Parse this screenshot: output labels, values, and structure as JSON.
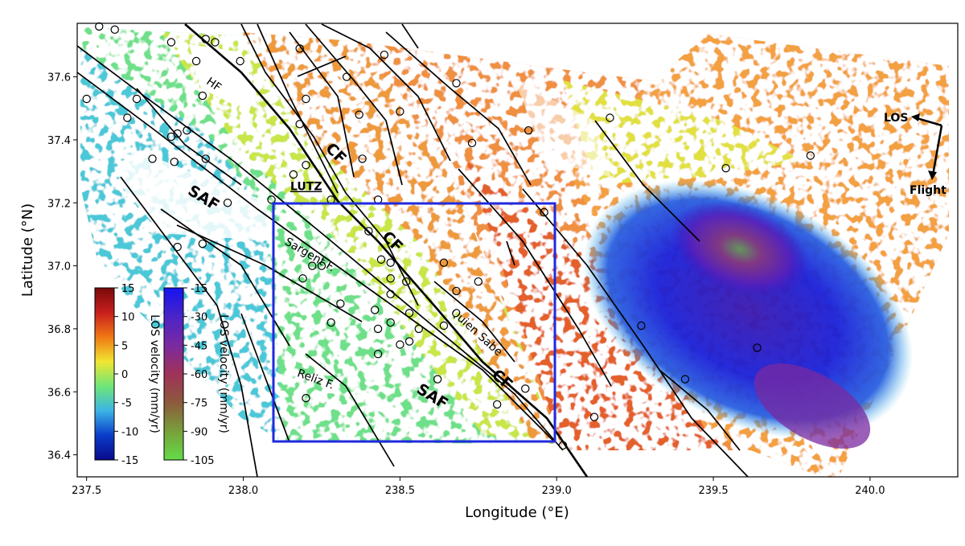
{
  "axes": {
    "xlabel": "Longitude (°E)",
    "ylabel": "Latitude (°N)",
    "xlim": [
      237.47,
      240.28
    ],
    "ylim": [
      36.33,
      37.77
    ],
    "xticks": [
      {
        "value": 237.5,
        "label": "237.5"
      },
      {
        "value": 238.0,
        "label": "238.0"
      },
      {
        "value": 238.5,
        "label": "238.5"
      },
      {
        "value": 239.0,
        "label": "239.0"
      },
      {
        "value": 239.5,
        "label": "239.5"
      },
      {
        "value": 240.0,
        "label": "240.0"
      }
    ],
    "yticks": [
      {
        "value": 36.4,
        "label": "36.4"
      },
      {
        "value": 36.6,
        "label": "36.6"
      },
      {
        "value": 36.8,
        "label": "36.8"
      },
      {
        "value": 37.0,
        "label": "37.0"
      },
      {
        "value": 37.2,
        "label": "37.2"
      },
      {
        "value": 37.4,
        "label": "37.4"
      },
      {
        "value": 37.6,
        "label": "37.6"
      }
    ]
  },
  "fault_labels": [
    {
      "text": "HF",
      "lon": 237.88,
      "lat": 37.58,
      "rotate": 35,
      "size": 14,
      "weight": "normal",
      "underline": false
    },
    {
      "text": "CF",
      "lon": 238.26,
      "lat": 37.37,
      "rotate": 45,
      "size": 19,
      "weight": "bold",
      "underline": false
    },
    {
      "text": "LUTZ",
      "lon": 238.15,
      "lat": 37.24,
      "rotate": 0,
      "size": 14,
      "weight": "bold",
      "underline": true
    },
    {
      "text": "SAF",
      "lon": 237.82,
      "lat": 37.23,
      "rotate": 32,
      "size": 19,
      "weight": "bold",
      "underline": false
    },
    {
      "text": "CF",
      "lon": 238.44,
      "lat": 37.09,
      "rotate": 45,
      "size": 19,
      "weight": "bold",
      "underline": false
    },
    {
      "text": "Sargent F.",
      "lon": 238.13,
      "lat": 37.07,
      "rotate": 30,
      "size": 14,
      "weight": "normal",
      "underline": false
    },
    {
      "text": "Quien Sabe",
      "lon": 238.66,
      "lat": 36.85,
      "rotate": 42,
      "size": 14,
      "weight": "normal",
      "underline": false
    },
    {
      "text": "CF",
      "lon": 238.79,
      "lat": 36.65,
      "rotate": 42,
      "size": 19,
      "weight": "bold",
      "underline": false
    },
    {
      "text": "SAF",
      "lon": 238.55,
      "lat": 36.6,
      "rotate": 32,
      "size": 19,
      "weight": "bold",
      "underline": false
    },
    {
      "text": "Reliz F.",
      "lon": 238.17,
      "lat": 36.65,
      "rotate": 20,
      "size": 14,
      "weight": "normal",
      "underline": false
    }
  ],
  "los_arrow": {
    "los_label": "LOS",
    "flight_label": "Flight"
  },
  "colorbars": [
    {
      "label": "LOS velocity (mm/yr)",
      "ticks": [
        "15",
        "10",
        "5",
        "0",
        "-5",
        "-10",
        "-15"
      ],
      "colors": [
        "#7a0a0a",
        "#c81e1e",
        "#f07814",
        "#f0e632",
        "#6ee678",
        "#3cb4e6",
        "#0a3cc8",
        "#0a0a8c"
      ]
    },
    {
      "label": "LOS velocity (mm/yr)",
      "ticks": [
        "-15",
        "-30",
        "-45",
        "-60",
        "-75",
        "-90",
        "-105"
      ],
      "colors": [
        "#1414f0",
        "#4a24c8",
        "#7a2aa0",
        "#a03258",
        "#8c5a3c",
        "#78a03c",
        "#64dc46"
      ]
    }
  ],
  "stations": [
    [
      237.54,
      37.76
    ],
    [
      237.59,
      37.75
    ],
    [
      237.77,
      37.71
    ],
    [
      237.88,
      37.72
    ],
    [
      237.91,
      37.71
    ],
    [
      237.99,
      37.65
    ],
    [
      237.85,
      37.65
    ],
    [
      237.5,
      37.53
    ],
    [
      237.66,
      37.53
    ],
    [
      237.87,
      37.54
    ],
    [
      237.63,
      37.47
    ],
    [
      237.77,
      37.41
    ],
    [
      237.82,
      37.43
    ],
    [
      237.79,
      37.42
    ],
    [
      237.71,
      37.34
    ],
    [
      237.78,
      37.33
    ],
    [
      237.88,
      37.34
    ],
    [
      238.18,
      37.45
    ],
    [
      238.2,
      37.53
    ],
    [
      238.33,
      37.6
    ],
    [
      238.37,
      37.48
    ],
    [
      238.45,
      37.67
    ],
    [
      238.5,
      37.49
    ],
    [
      238.68,
      37.58
    ],
    [
      238.91,
      37.43
    ],
    [
      238.73,
      37.39
    ],
    [
      239.17,
      37.47
    ],
    [
      238.38,
      37.34
    ],
    [
      238.2,
      37.32
    ],
    [
      238.16,
      37.29
    ],
    [
      238.09,
      37.21
    ],
    [
      238.28,
      37.21
    ],
    [
      238.43,
      37.21
    ],
    [
      238.96,
      37.17
    ],
    [
      237.95,
      37.2
    ],
    [
      238.4,
      37.11
    ],
    [
      238.44,
      37.02
    ],
    [
      238.47,
      37.01
    ],
    [
      238.64,
      37.01
    ],
    [
      238.22,
      37.0
    ],
    [
      238.25,
      37.0
    ],
    [
      238.19,
      36.96
    ],
    [
      238.47,
      36.96
    ],
    [
      238.52,
      36.95
    ],
    [
      238.68,
      36.92
    ],
    [
      238.75,
      36.95
    ],
    [
      238.47,
      36.91
    ],
    [
      238.31,
      36.88
    ],
    [
      238.42,
      36.86
    ],
    [
      238.53,
      36.85
    ],
    [
      238.28,
      36.82
    ],
    [
      238.47,
      36.82
    ],
    [
      238.43,
      36.8
    ],
    [
      238.56,
      36.8
    ],
    [
      238.64,
      36.81
    ],
    [
      238.53,
      36.76
    ],
    [
      238.5,
      36.75
    ],
    [
      238.43,
      36.72
    ],
    [
      238.62,
      36.64
    ],
    [
      238.2,
      36.58
    ],
    [
      238.81,
      36.56
    ],
    [
      238.9,
      36.61
    ],
    [
      239.02,
      36.43
    ],
    [
      239.12,
      36.52
    ],
    [
      239.27,
      36.81
    ],
    [
      239.41,
      36.64
    ],
    [
      239.64,
      36.74
    ],
    [
      239.54,
      37.31
    ],
    [
      239.81,
      37.35
    ],
    [
      237.87,
      37.07
    ],
    [
      237.79,
      37.06
    ],
    [
      238.18,
      37.69
    ]
  ]
}
